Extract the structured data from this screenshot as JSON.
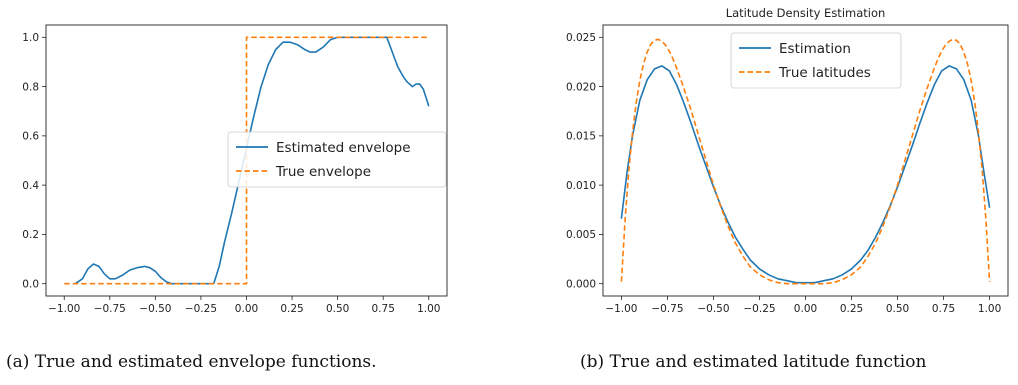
{
  "captions": {
    "a": "(a) True and estimated envelope functions.",
    "b": "(b) True and estimated latitude function"
  },
  "chart_data": [
    {
      "type": "line",
      "title": "",
      "xlabel": "",
      "ylabel": "",
      "xlim": [
        -1.0,
        1.0
      ],
      "ylim": [
        0.0,
        1.0
      ],
      "xticks": [
        "−1.00",
        "−0.75",
        "−0.50",
        "−0.25",
        "0.00",
        "0.25",
        "0.50",
        "0.75",
        "1.00"
      ],
      "yticks": [
        "0.0",
        "0.2",
        "0.4",
        "0.6",
        "0.8",
        "1.0"
      ],
      "legend_position": "center-right",
      "series": [
        {
          "name": "Estimated envelope",
          "color": "#1f77b4",
          "style": "solid",
          "x": [
            -0.94,
            -0.9,
            -0.87,
            -0.84,
            -0.81,
            -0.78,
            -0.75,
            -0.72,
            -0.68,
            -0.64,
            -0.6,
            -0.56,
            -0.53,
            -0.5,
            -0.47,
            -0.44,
            -0.41,
            -0.37,
            -0.3,
            -0.25,
            -0.18,
            -0.15,
            -0.12,
            -0.08,
            -0.04,
            0.0,
            0.04,
            0.08,
            0.12,
            0.16,
            0.2,
            0.24,
            0.28,
            0.32,
            0.35,
            0.38,
            0.42,
            0.46,
            0.5,
            0.6,
            0.7,
            0.77,
            0.8,
            0.83,
            0.86,
            0.88,
            0.91,
            0.93,
            0.95,
            0.97,
            1.0
          ],
          "y": [
            0.0,
            0.02,
            0.06,
            0.08,
            0.07,
            0.04,
            0.02,
            0.02,
            0.035,
            0.055,
            0.065,
            0.07,
            0.065,
            0.05,
            0.025,
            0.008,
            0.0,
            0.0,
            0.0,
            0.0,
            0.0,
            0.07,
            0.17,
            0.29,
            0.42,
            0.55,
            0.68,
            0.8,
            0.89,
            0.95,
            0.98,
            0.98,
            0.97,
            0.95,
            0.94,
            0.94,
            0.96,
            0.99,
            1.0,
            1.0,
            1.0,
            1.0,
            0.94,
            0.88,
            0.84,
            0.82,
            0.8,
            0.81,
            0.81,
            0.79,
            0.72
          ]
        },
        {
          "name": "True envelope",
          "color": "#ff7f0e",
          "style": "dashed",
          "x": [
            -1.0,
            0.0,
            0.0,
            1.0
          ],
          "y": [
            0.0,
            0.0,
            1.0,
            1.0
          ]
        }
      ]
    },
    {
      "type": "line",
      "title": "Latitude Density Estimation",
      "xlabel": "",
      "ylabel": "",
      "xlim": [
        -1.0,
        1.0
      ],
      "ylim": [
        0.0,
        0.025
      ],
      "xticks": [
        "−1.00",
        "−0.75",
        "−0.50",
        "−0.25",
        "0.00",
        "0.25",
        "0.50",
        "0.75",
        "1.00"
      ],
      "yticks": [
        "0.000",
        "0.005",
        "0.010",
        "0.015",
        "0.020",
        "0.025"
      ],
      "legend_position": "upper-center",
      "series": [
        {
          "name": "Estimation",
          "color": "#1f77b4",
          "style": "solid",
          "x": [
            -1.0,
            -0.97,
            -0.94,
            -0.9,
            -0.86,
            -0.82,
            -0.78,
            -0.74,
            -0.7,
            -0.66,
            -0.62,
            -0.58,
            -0.54,
            -0.5,
            -0.46,
            -0.42,
            -0.38,
            -0.34,
            -0.3,
            -0.25,
            -0.2,
            -0.15,
            -0.1,
            -0.05,
            0.0,
            0.05,
            0.1,
            0.15,
            0.2,
            0.25,
            0.3,
            0.34,
            0.38,
            0.42,
            0.46,
            0.5,
            0.54,
            0.58,
            0.62,
            0.66,
            0.7,
            0.74,
            0.78,
            0.82,
            0.86,
            0.9,
            0.94,
            0.97,
            1.0
          ],
          "y": [
            0.0066,
            0.0112,
            0.015,
            0.0186,
            0.0207,
            0.0218,
            0.0221,
            0.0216,
            0.0202,
            0.0183,
            0.0162,
            0.014,
            0.0119,
            0.0098,
            0.0079,
            0.0062,
            0.0047,
            0.0035,
            0.0024,
            0.0015,
            0.0009,
            0.0005,
            0.0003,
            0.0001,
            0.0001,
            0.0001,
            0.0003,
            0.0005,
            0.0009,
            0.0015,
            0.0024,
            0.0034,
            0.0047,
            0.0062,
            0.0079,
            0.0098,
            0.0119,
            0.014,
            0.0162,
            0.0183,
            0.0202,
            0.0216,
            0.0221,
            0.0218,
            0.0207,
            0.0186,
            0.015,
            0.0112,
            0.0077
          ]
        },
        {
          "name": "True latitudes",
          "color": "#ff7f0e",
          "style": "dashed",
          "x": [
            -1.0,
            -0.98,
            -0.96,
            -0.94,
            -0.92,
            -0.9,
            -0.88,
            -0.86,
            -0.84,
            -0.82,
            -0.8,
            -0.78,
            -0.76,
            -0.74,
            -0.72,
            -0.7,
            -0.66,
            -0.62,
            -0.58,
            -0.54,
            -0.5,
            -0.46,
            -0.42,
            -0.38,
            -0.34,
            -0.3,
            -0.25,
            -0.2,
            -0.15,
            -0.1,
            -0.05,
            0.0,
            0.05,
            0.1,
            0.15,
            0.2,
            0.25,
            0.3,
            0.34,
            0.38,
            0.42,
            0.46,
            0.5,
            0.54,
            0.58,
            0.62,
            0.66,
            0.7,
            0.72,
            0.74,
            0.76,
            0.78,
            0.8,
            0.82,
            0.84,
            0.86,
            0.88,
            0.9,
            0.92,
            0.94,
            0.96,
            0.98,
            1.0
          ],
          "y": [
            0.0002,
            0.0065,
            0.0115,
            0.0153,
            0.0183,
            0.0206,
            0.0223,
            0.0235,
            0.0243,
            0.0247,
            0.0248,
            0.0246,
            0.0242,
            0.0236,
            0.0228,
            0.0219,
            0.0198,
            0.0175,
            0.015,
            0.0125,
            0.01,
            0.0078,
            0.0058,
            0.0041,
            0.0028,
            0.0017,
            0.0009,
            0.0004,
            0.0001,
            0.0,
            0.0,
            0.0,
            0.0,
            0.0,
            0.0001,
            0.0004,
            0.0009,
            0.0017,
            0.0028,
            0.0041,
            0.0058,
            0.0078,
            0.01,
            0.0125,
            0.015,
            0.0175,
            0.0198,
            0.0219,
            0.0228,
            0.0236,
            0.0242,
            0.0246,
            0.0248,
            0.0247,
            0.0243,
            0.0235,
            0.0223,
            0.0206,
            0.0183,
            0.0153,
            0.0115,
            0.0065,
            0.0002
          ]
        }
      ]
    }
  ]
}
